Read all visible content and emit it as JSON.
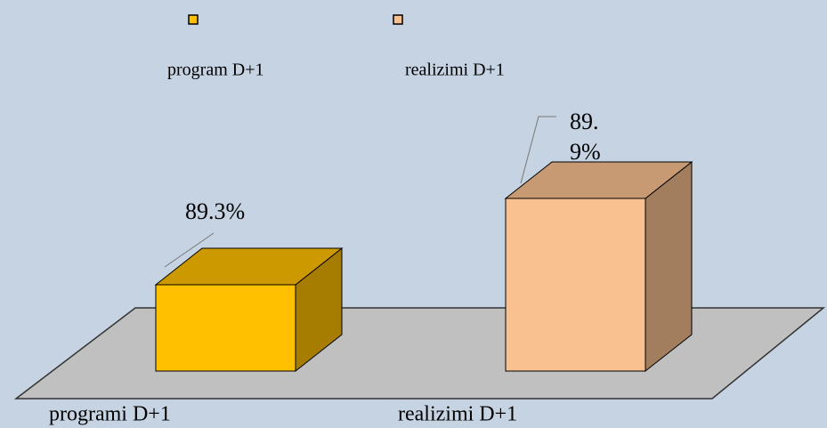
{
  "chart_data": {
    "type": "bar3d",
    "categories": [
      "programi D+1",
      "realizimi D+1"
    ],
    "series": [
      {
        "name": "program D+1",
        "color": "#ffc000",
        "values": [
          89.3,
          null
        ],
        "value_labels": [
          "89.3%",
          null
        ]
      },
      {
        "name": "realizimi D+1",
        "color": "#f9c090",
        "values": [
          null,
          89.9
        ],
        "value_labels": [
          null,
          "89.9%"
        ]
      }
    ],
    "ylim": [
      88.7,
      90.2
    ]
  }
}
